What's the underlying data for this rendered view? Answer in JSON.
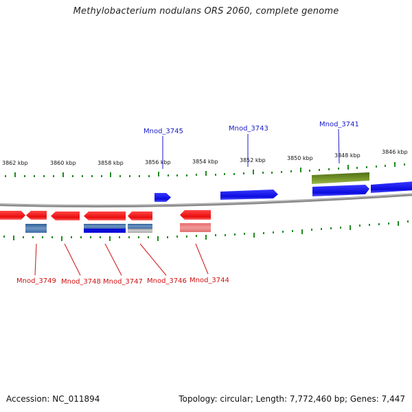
{
  "title": "Methylobacterium nodulans ORS 2060, complete genome",
  "footer": {
    "accession": "Accession: NC_011894",
    "info": "Topology: circular; Length: 7,772,460 bp; Genes: 7,447"
  },
  "scale_labels": [
    "3862 kbp",
    "3860 kbp",
    "3858 kbp",
    "3856 kbp",
    "3854 kbp",
    "3852 kbp",
    "3850 kbp",
    "3848 kbp",
    "3846 kbp"
  ],
  "top_gene_labels": [
    "Mnod_3745",
    "Mnod_3743",
    "Mnod_3741"
  ],
  "bottom_gene_labels": [
    "Mnod_3749",
    "Mnod_3748",
    "Mnod_3747",
    "Mnod_3746",
    "Mnod_3744"
  ],
  "colors": {
    "forward_gene": "#1010e8",
    "reverse_gene": "#ee1010",
    "feature_green": "#6b8e23",
    "tick": "#1f8a1f",
    "backbone": "#8a8a8a",
    "top_label": "#1a1ac8",
    "bottom_label": "#d01010"
  }
}
